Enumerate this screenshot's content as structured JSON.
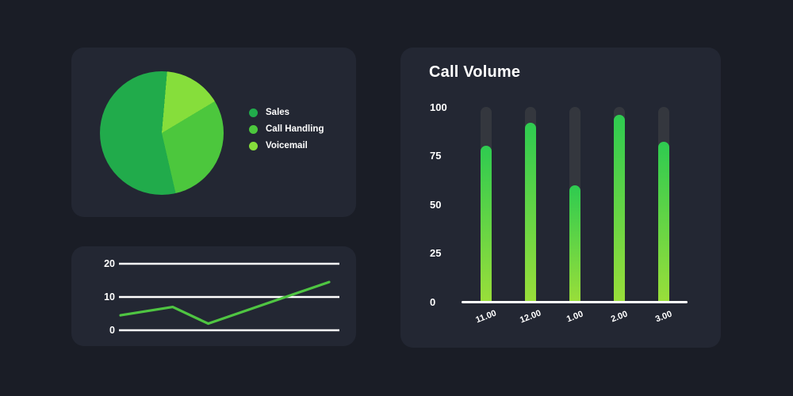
{
  "page": {
    "background_color": "#1a1d26",
    "card_color": "#232733",
    "text_color": "#ffffff"
  },
  "chart_data": [
    {
      "id": "calls-breakdown-pie",
      "type": "pie",
      "labels": [
        "Sales",
        "Call Handling",
        "Voicemail"
      ],
      "values": [
        55,
        30,
        15
      ],
      "colors": [
        "#21ab4b",
        "#4cc73d",
        "#86de3b"
      ],
      "start_angle_deg": 5,
      "draw_order": [
        2,
        1,
        0
      ],
      "legend_position": "right",
      "title": ""
    },
    {
      "id": "trend-line",
      "type": "line",
      "points": [
        {
          "x_frac": 0.0,
          "value": 4.5
        },
        {
          "x_frac": 0.25,
          "value": 7
        },
        {
          "x_frac": 0.42,
          "value": 2
        },
        {
          "x_frac": 1.0,
          "value": 14.5
        }
      ],
      "yticks": [
        0,
        10,
        20
      ],
      "ytick_labels": [
        "20",
        "10",
        "0"
      ],
      "ylim": [
        0,
        20
      ],
      "line_color": "#4fc542",
      "grid_color": "#ffffff",
      "grid": "on",
      "title": ""
    },
    {
      "id": "call-volume-bars",
      "type": "bar",
      "title": "Call Volume",
      "categories": [
        "11.00",
        "12.00",
        "1.00",
        "2.00",
        "3.00"
      ],
      "values": [
        80,
        92,
        60,
        96,
        82
      ],
      "ylim": [
        0,
        100
      ],
      "yticks": [
        0,
        25,
        50,
        75,
        100
      ],
      "ytick_labels": [
        "100",
        "75",
        "50",
        "25",
        "0"
      ],
      "track_max": 100,
      "track_color": "#34373e",
      "bar_gradient_top": "#2ecb50",
      "bar_gradient_bottom": "#9ade3a",
      "axis_line_color": "#ffffff",
      "grid": "off",
      "legend_position": "none"
    }
  ]
}
